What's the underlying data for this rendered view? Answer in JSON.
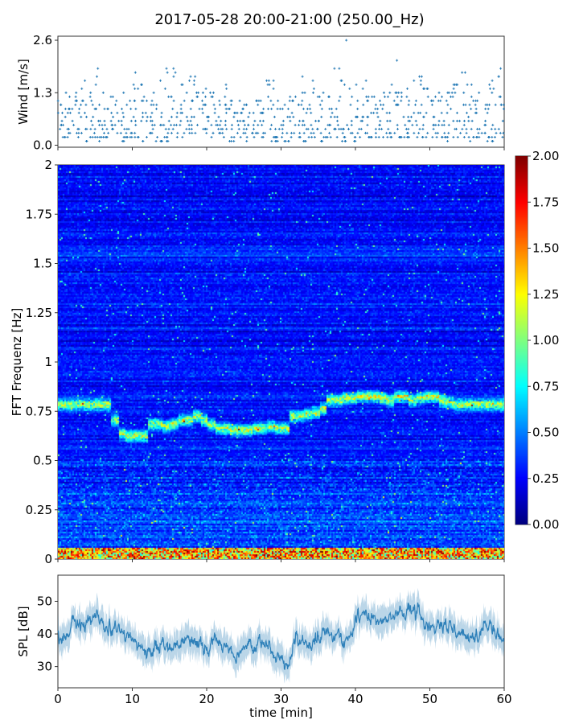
{
  "title": "2017-05-28 20:00-21:00 (250.00_Hz)",
  "chart_data": [
    {
      "type": "scatter",
      "name": "wind",
      "ylabel": "Wind [m/s]",
      "ylim": [
        -0.05,
        2.7
      ],
      "xlim": [
        0,
        60
      ],
      "yticks": [
        "0.0",
        "1.3",
        "2.6"
      ],
      "ytick_values": [
        0.0,
        1.3,
        2.6
      ],
      "marker": "+",
      "color": "#1f77b4",
      "x_minutes": [
        0,
        1,
        2,
        3,
        4,
        5,
        6,
        7,
        8,
        9,
        10,
        11,
        12,
        13,
        14,
        15,
        16,
        17,
        18,
        19,
        20,
        21,
        22,
        23,
        24,
        25,
        26,
        27,
        28,
        29,
        30,
        31,
        32,
        33,
        34,
        35,
        36,
        37,
        38,
        39,
        40,
        41,
        42,
        43,
        44,
        45,
        46,
        47,
        48,
        49,
        50,
        51,
        52,
        53,
        54,
        55,
        56,
        57,
        58,
        59
      ],
      "max_per_minute": [
        1.1,
        1.3,
        1.3,
        1.6,
        1.3,
        1.9,
        1.3,
        1.2,
        1.3,
        1.1,
        1.8,
        1.5,
        1.3,
        1.6,
        1.9,
        1.9,
        1.5,
        1.7,
        1.7,
        1.4,
        1.3,
        1.1,
        1.5,
        1.1,
        1.1,
        1.0,
        1.1,
        1.1,
        1.6,
        1.1,
        1.0,
        1.2,
        1.7,
        1.3,
        1.6,
        1.3,
        1.2,
        1.9,
        2.6,
        1.4,
        1.5,
        1.6,
        1.2,
        1.3,
        1.5,
        2.1,
        1.4,
        1.6,
        1.7,
        1.4,
        1.2,
        1.3,
        1.3,
        1.5,
        1.8,
        1.5,
        1.3,
        1.0,
        1.6,
        1.9
      ],
      "min_per_minute": [
        0.2,
        0.2,
        0.2,
        0.1,
        0.2,
        0.1,
        0.2,
        0.3,
        0.1,
        0.2,
        0.2,
        0.1,
        0.3,
        0.1,
        0.1,
        0.3,
        0.2,
        0.3,
        0.2,
        0.3,
        0.2,
        0.3,
        0.2,
        0.1,
        0.2,
        0.1,
        0.2,
        0.2,
        0.1,
        0.1,
        0.1,
        0.1,
        0.2,
        0.1,
        0.2,
        0.1,
        0.2,
        0.2,
        0.1,
        0.1,
        0.2,
        0.2,
        0.2,
        0.2,
        0.2,
        0.2,
        0.1,
        0.2,
        0.2,
        0.2,
        0.2,
        0.2,
        0.1,
        0.2,
        0.2,
        0.1,
        0.2,
        0.1,
        0.1,
        0.2
      ]
    },
    {
      "type": "heatmap",
      "name": "spectrogram",
      "ylabel": "FFT Frequenz [Hz]",
      "ylim": [
        0,
        2
      ],
      "xlim": [
        0,
        60
      ],
      "yticks": [
        "0",
        "0.25",
        "0.5",
        "0.75",
        "1",
        "1.25",
        "1.5",
        "1.75",
        "2"
      ],
      "ytick_values": [
        0,
        0.25,
        0.5,
        0.75,
        1,
        1.25,
        1.5,
        1.75,
        2
      ],
      "colormap": "jet",
      "clim": [
        0,
        2
      ],
      "colorbar_ticks": [
        "0.00",
        "0.25",
        "0.50",
        "0.75",
        "1.00",
        "1.25",
        "1.50",
        "1.75",
        "2.00"
      ],
      "colorbar_tick_values": [
        0,
        0.25,
        0.5,
        0.75,
        1,
        1.25,
        1.5,
        1.75,
        2
      ],
      "background_level": 0.2,
      "dominant_band_hz_per_minute": [
        0.78,
        0.78,
        0.78,
        0.78,
        0.78,
        0.78,
        0.78,
        0.7,
        0.63,
        0.62,
        0.62,
        0.62,
        0.68,
        0.68,
        0.67,
        0.68,
        0.7,
        0.7,
        0.72,
        0.7,
        0.68,
        0.66,
        0.66,
        0.65,
        0.65,
        0.65,
        0.66,
        0.66,
        0.67,
        0.66,
        0.66,
        0.72,
        0.72,
        0.73,
        0.74,
        0.76,
        0.8,
        0.8,
        0.81,
        0.81,
        0.82,
        0.82,
        0.82,
        0.81,
        0.8,
        0.82,
        0.82,
        0.8,
        0.81,
        0.82,
        0.82,
        0.8,
        0.79,
        0.78,
        0.78,
        0.78,
        0.78,
        0.78,
        0.78,
        0.78
      ],
      "dominant_band_level": 1.0,
      "low_freq_band_hz": [
        0,
        0.05
      ],
      "low_freq_band_level": 1.4
    },
    {
      "type": "line",
      "name": "spl",
      "ylabel": "SPL [dB]",
      "xlabel": "time [min]",
      "ylim": [
        23.5,
        58
      ],
      "xlim": [
        0,
        60
      ],
      "yticks": [
        "30",
        "40",
        "50"
      ],
      "ytick_values": [
        30,
        40,
        50
      ],
      "xticks": [
        "0",
        "10",
        "20",
        "30",
        "40",
        "50",
        "60"
      ],
      "xtick_values": [
        0,
        10,
        20,
        30,
        40,
        50,
        60
      ],
      "color": "#1f77b4",
      "x_minutes": [
        0,
        1,
        2,
        3,
        4,
        5,
        6,
        7,
        8,
        9,
        10,
        11,
        12,
        13,
        14,
        15,
        16,
        17,
        18,
        19,
        20,
        21,
        22,
        23,
        24,
        25,
        26,
        27,
        28,
        29,
        30,
        31,
        32,
        33,
        34,
        35,
        36,
        37,
        38,
        39,
        40,
        41,
        42,
        43,
        44,
        45,
        46,
        47,
        48,
        49,
        50,
        51,
        52,
        53,
        54,
        55,
        56,
        57,
        58,
        59,
        60
      ],
      "mean": [
        40,
        37,
        44,
        43,
        42,
        46,
        44,
        41,
        40,
        39,
        38,
        36,
        34,
        36,
        37,
        35,
        35,
        38,
        39,
        37,
        36,
        38,
        35,
        34,
        35,
        35,
        36,
        37,
        38,
        34,
        33,
        31,
        39,
        38,
        36,
        39,
        41,
        38,
        40,
        38,
        45,
        46,
        45,
        44,
        43,
        46,
        45,
        47,
        46,
        44,
        42,
        43,
        44,
        42,
        40,
        39,
        38,
        42,
        43,
        39,
        38
      ],
      "spread_db": 4
    }
  ]
}
